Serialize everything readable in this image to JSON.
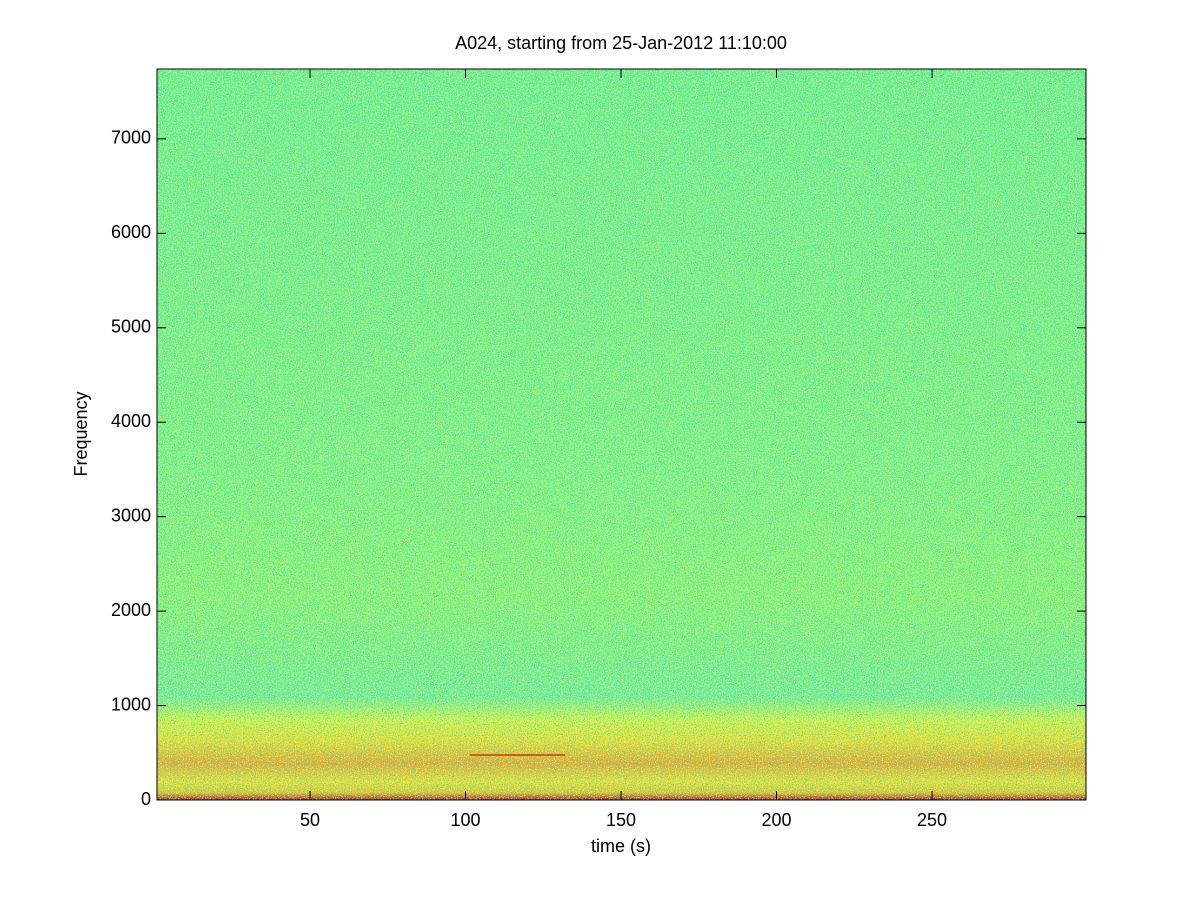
{
  "chart_data": {
    "type": "spectrogram",
    "title": "A024, starting from 25-Jan-2012 11:10:00",
    "xlabel": "time (s)",
    "ylabel": "Frequency",
    "xlim": [
      0.8,
      299.5
    ],
    "ylim": [
      0,
      7740
    ],
    "xticks": [
      50,
      100,
      150,
      200,
      250
    ],
    "yticks": [
      0,
      1000,
      2000,
      3000,
      4000,
      5000,
      6000,
      7000
    ]
  }
}
